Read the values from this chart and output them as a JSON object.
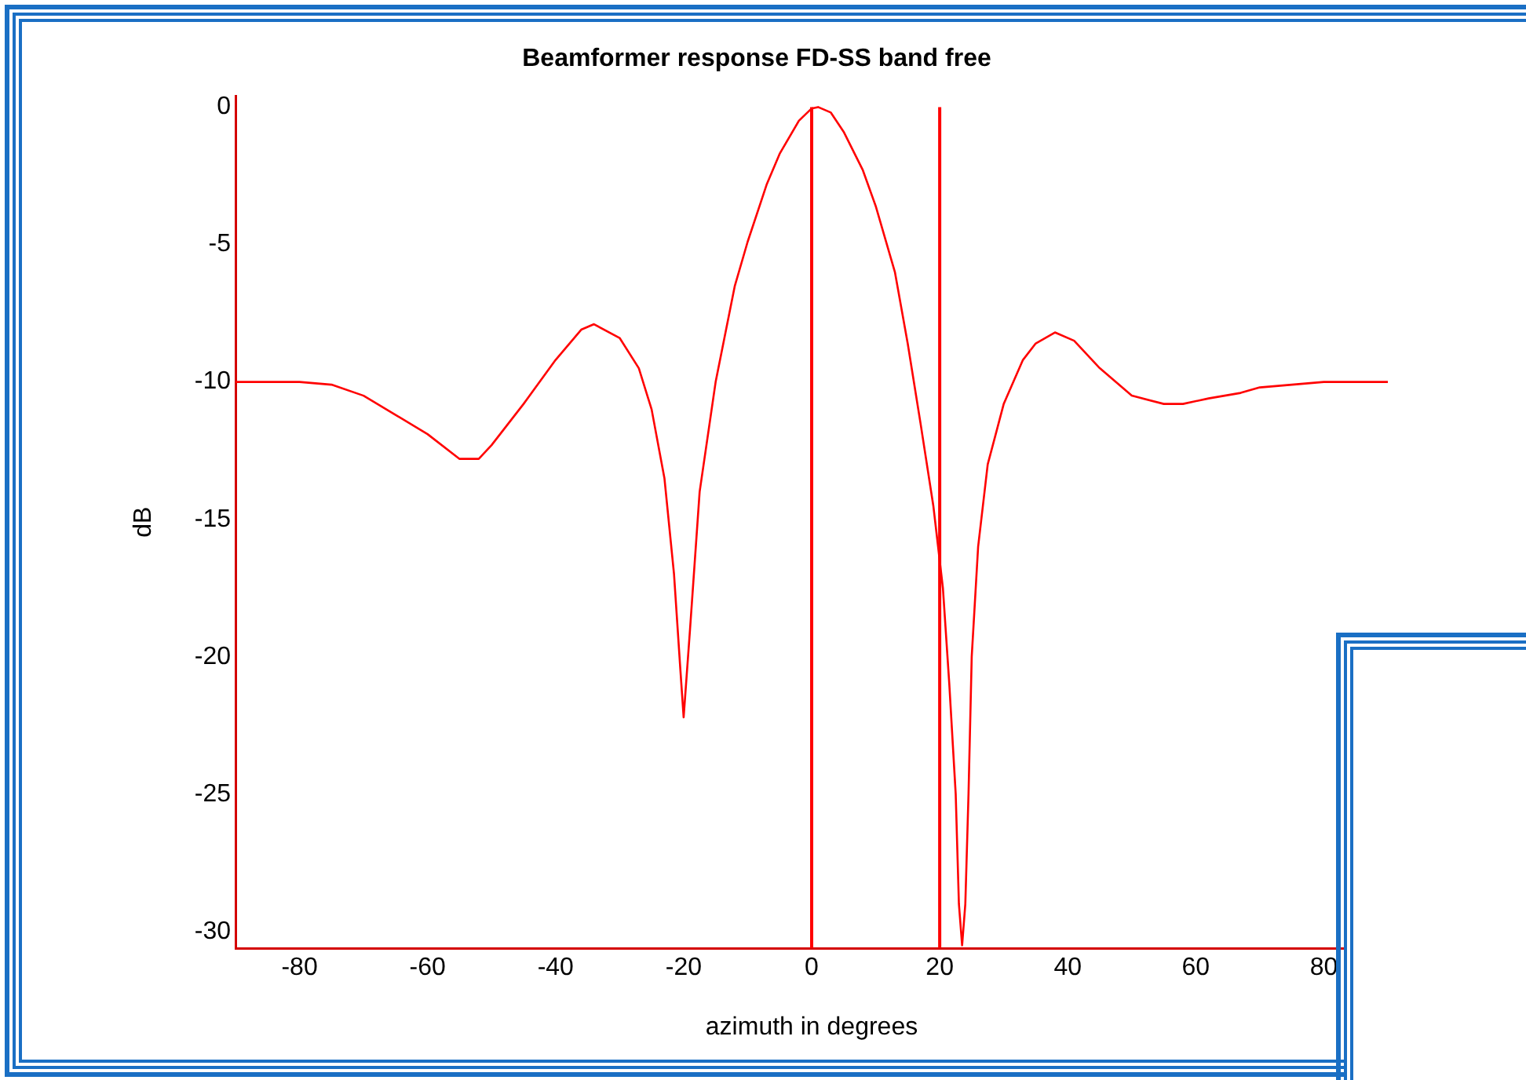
{
  "chart_data": {
    "type": "line",
    "title": "Beamformer response FD-SS band free",
    "xlabel": "azimuth in degrees",
    "ylabel": "dB",
    "x": [
      -90,
      -80,
      -75,
      -70,
      -65,
      -60,
      -55,
      -52,
      -50,
      -45,
      -40,
      -36,
      -34,
      -30,
      -27,
      -25,
      -23,
      -21.5,
      -20.5,
      -20,
      -19,
      -17.5,
      -15,
      -12,
      -10,
      -7,
      -5,
      -2,
      0,
      1,
      3,
      5,
      8,
      10,
      13,
      15,
      17,
      19,
      20.5,
      21.5,
      22.5,
      23,
      23.5,
      24,
      24.5,
      25,
      26,
      27.5,
      30,
      33,
      35,
      38,
      41,
      45,
      50,
      55,
      58,
      62,
      67,
      70,
      75,
      80,
      90
    ],
    "series": [
      {
        "color": "#ff0000",
        "values": [
          -10,
          -10,
          -10.1,
          -10.5,
          -11.2,
          -11.9,
          -12.8,
          -12.8,
          -12.3,
          -10.8,
          -9.2,
          -8.1,
          -7.9,
          -8.4,
          -9.5,
          -11,
          -13.5,
          -17,
          -20.5,
          -22.2,
          -19,
          -14,
          -10,
          -6.5,
          -4.9,
          -2.8,
          -1.7,
          -0.5,
          -0.05,
          0,
          -0.2,
          -0.9,
          -2.3,
          -3.6,
          -6,
          -8.6,
          -11.5,
          -14.5,
          -17.5,
          -21,
          -25,
          -29,
          -30.5,
          -29,
          -25,
          -20,
          -16,
          -13,
          -10.8,
          -9.2,
          -8.6,
          -8.2,
          -8.5,
          -9.5,
          -10.5,
          -10.8,
          -10.8,
          -10.6,
          -10.4,
          -10.2,
          -10.1,
          -10,
          -10
        ]
      }
    ],
    "xlim": [
      -90,
      90
    ],
    "xticks": [
      -80,
      -60,
      -40,
      -20,
      0,
      20,
      40,
      60,
      80
    ],
    "ylim": [
      -30.6,
      0.4
    ],
    "yticks": [
      -30,
      -25,
      -20,
      -15,
      -10,
      -5,
      0
    ],
    "ref_lines": [
      {
        "axis": "x",
        "value": 0,
        "color": "#ff0000"
      },
      {
        "axis": "x",
        "value": 20,
        "color": "#ff0000"
      }
    ],
    "grid": false,
    "legend": false,
    "marker": "none",
    "line_style": "solid"
  }
}
